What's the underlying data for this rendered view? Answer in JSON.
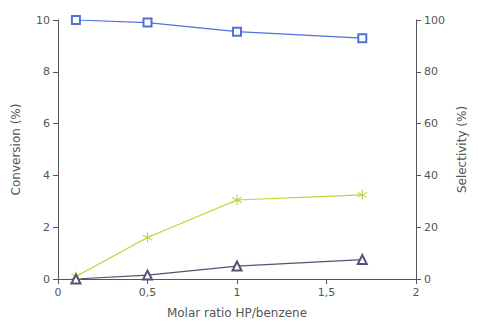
{
  "chart_data": {
    "type": "line",
    "x": [
      0.1,
      0.5,
      1.0,
      1.7
    ],
    "series": [
      {
        "values": [
          10.0,
          9.9,
          9.55,
          9.3
        ],
        "marker": "square"
      },
      {
        "values": [
          0.1,
          1.6,
          3.05,
          3.25
        ],
        "marker": "asterisk"
      },
      {
        "values": [
          0.0,
          0.15,
          0.5,
          0.75
        ],
        "marker": "triangle"
      }
    ],
    "xlabel": "Molar ratio HP/benzene",
    "ylabel": "Conversion (%)",
    "y2label": "Selectivity (%)",
    "xlim": [
      0,
      2
    ],
    "xticks": [
      0,
      {
        "value": 0.5,
        "label": "0,5"
      },
      1,
      {
        "value": 1.5,
        "label": "1,5"
      },
      2
    ],
    "ylim": [
      0,
      10
    ],
    "yticks": [
      0,
      2,
      4,
      6,
      8,
      10
    ],
    "y2lim": [
      0,
      100
    ],
    "y2ticks": [
      0,
      20,
      40,
      60,
      80,
      100
    ],
    "grid": false
  }
}
